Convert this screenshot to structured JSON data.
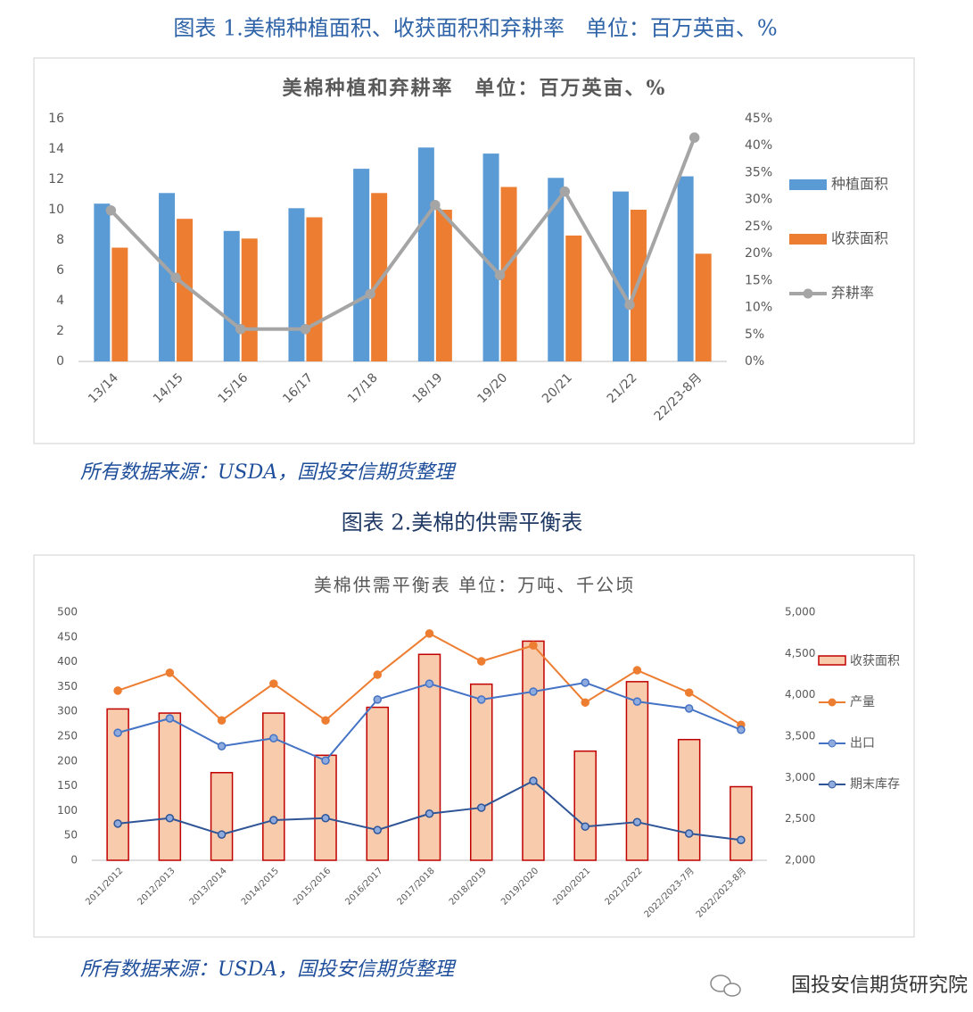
{
  "figures": [
    {
      "caption": "图表 1.美棉种植面积、收获面积和弃耕率　单位：百万英亩、%",
      "source": "所有数据来源：USDA，国投安信期货整理"
    },
    {
      "caption": "图表 2.美棉的供需平衡表",
      "source": "所有数据来源：USDA，国投安信期货整理"
    }
  ],
  "watermark": "国投安信期货研究院",
  "chart_data": [
    {
      "type": "bar",
      "title": "美棉种植和弃耕率　单位：百万英亩、%",
      "categories": [
        "13/14",
        "14/15",
        "15/16",
        "16/17",
        "17/18",
        "18/19",
        "19/20",
        "20/21",
        "21/22",
        "22/23-8月"
      ],
      "series": [
        {
          "name": "种植面积",
          "type": "bar",
          "color": "#5b9bd5",
          "values": [
            10.4,
            11.1,
            8.6,
            10.1,
            12.7,
            14.1,
            13.7,
            12.1,
            11.2,
            12.2
          ]
        },
        {
          "name": "收获面积",
          "type": "bar",
          "color": "#ed7d31",
          "values": [
            7.5,
            9.4,
            8.1,
            9.5,
            11.1,
            10.0,
            11.5,
            8.3,
            10.0,
            7.1
          ]
        },
        {
          "name": "弃耕率",
          "type": "line",
          "axis": "y2",
          "color": "#a5a5a5",
          "values": [
            28,
            15.5,
            6,
            6,
            12.5,
            29,
            16,
            31.5,
            10.5,
            41.5
          ]
        }
      ],
      "ylim": [
        0,
        16
      ],
      "yticks": [
        0,
        2,
        4,
        6,
        8,
        10,
        12,
        14,
        16
      ],
      "y2lim": [
        0,
        45
      ],
      "y2ticks": [
        {
          "value": 0,
          "label": "0%"
        },
        {
          "value": 5,
          "label": "5%"
        },
        {
          "value": 10,
          "label": "10%"
        },
        {
          "value": 15,
          "label": "15%"
        },
        {
          "value": 20,
          "label": "20%"
        },
        {
          "value": 25,
          "label": "25%"
        },
        {
          "value": 30,
          "label": "30%"
        },
        {
          "value": 35,
          "label": "35%"
        },
        {
          "value": 40,
          "label": "40%"
        },
        {
          "value": 45,
          "label": "45%"
        }
      ],
      "grid": false,
      "legend": "right"
    },
    {
      "type": "bar",
      "title": "美棉供需平衡表 单位：万吨、千公顷",
      "categories": [
        "2011/2012",
        "2012/2013",
        "2013/2014",
        "2014/2015",
        "2015/2016",
        "2016/2017",
        "2017/2018",
        "2018/2019",
        "2019/2020",
        "2020/2021",
        "2021/2022",
        "2022/2023-7月",
        "2022/2023-8月"
      ],
      "series": [
        {
          "name": "收获面积",
          "type": "bar",
          "axis": "y2",
          "color": "#f8cbad",
          "values": [
            3830,
            3780,
            3060,
            3780,
            3270,
            3850,
            4490,
            4130,
            4650,
            3320,
            4160,
            3460,
            2890
          ]
        },
        {
          "name": "产量",
          "type": "line",
          "color": "#ed7d31",
          "values": [
            342,
            378,
            282,
            356,
            282,
            374,
            457,
            401,
            433,
            318,
            383,
            338,
            273
          ]
        },
        {
          "name": "出口",
          "type": "line",
          "color": "#4472c4",
          "values": [
            257,
            286,
            230,
            246,
            201,
            324,
            356,
            324,
            340,
            358,
            320,
            306,
            263
          ]
        },
        {
          "name": "期末库存",
          "type": "line",
          "color": "#2f5597",
          "values": [
            74,
            85,
            52,
            81,
            85,
            61,
            94,
            106,
            160,
            68,
            77,
            54,
            41
          ]
        }
      ],
      "ylim": [
        0,
        500
      ],
      "yticks": [
        0,
        50,
        100,
        150,
        200,
        250,
        300,
        350,
        400,
        450,
        500
      ],
      "y2lim": [
        2000,
        5000
      ],
      "y2ticks": [
        {
          "value": 2000,
          "label": "2,000"
        },
        {
          "value": 2500,
          "label": "2,500"
        },
        {
          "value": 3000,
          "label": "3,000"
        },
        {
          "value": 3500,
          "label": "3,500"
        },
        {
          "value": 4000,
          "label": "4,000"
        },
        {
          "value": 4500,
          "label": "4,500"
        },
        {
          "value": 5000,
          "label": "5,000"
        }
      ],
      "grid": false,
      "legend": "right"
    }
  ]
}
